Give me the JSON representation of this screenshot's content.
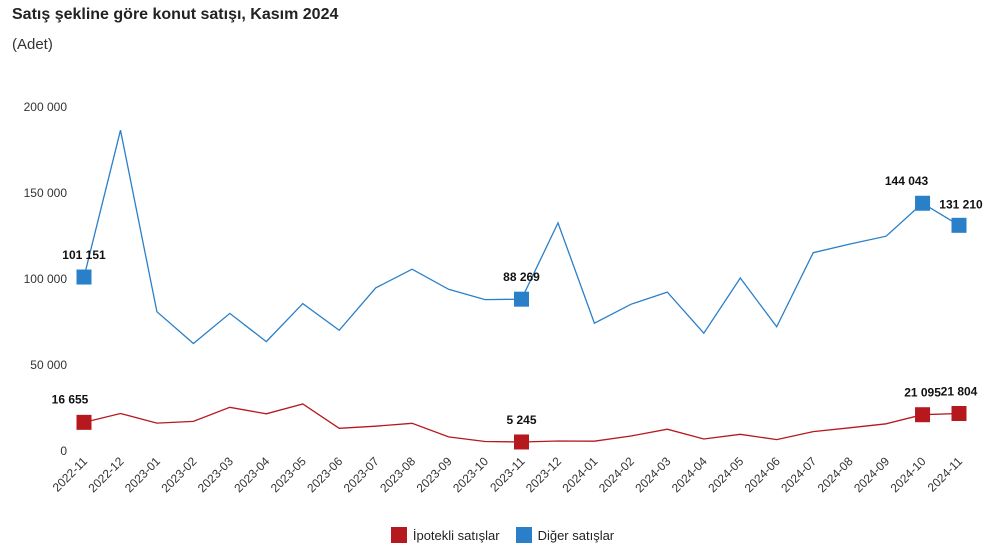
{
  "title": "Satış şekline göre konut satışı, Kasım 2024",
  "subtitle": "(Adet)",
  "chart_data": {
    "type": "line",
    "x": [
      "2022-11",
      "2022-12",
      "2023-01",
      "2023-02",
      "2023-03",
      "2023-04",
      "2023-05",
      "2023-06",
      "2023-07",
      "2023-08",
      "2023-09",
      "2023-10",
      "2023-11",
      "2023-12",
      "2024-01",
      "2024-02",
      "2024-03",
      "2024-04",
      "2024-05",
      "2024-06",
      "2024-07",
      "2024-08",
      "2024-09",
      "2024-10",
      "2024-11"
    ],
    "ylim": [
      0,
      200000
    ],
    "yticks": [
      0,
      50000,
      100000,
      150000,
      200000
    ],
    "ytick_labels": [
      "0",
      "50 000",
      "100 000",
      "150 000",
      "200 000"
    ],
    "grid": false,
    "legend_position": "bottom",
    "series": [
      {
        "name": "İpotekli satışlar",
        "color": "#b5191d",
        "values": [
          16655,
          21800,
          16200,
          17200,
          25400,
          21600,
          27300,
          13200,
          14400,
          16100,
          8200,
          5500,
          5245,
          5800,
          5700,
          8700,
          12700,
          7000,
          9700,
          6600,
          11300,
          13500,
          15800,
          21095,
          21804
        ],
        "labeled": [
          {
            "index": 0,
            "text": "16 655"
          },
          {
            "index": 12,
            "text": "5 245"
          },
          {
            "index": 23,
            "text": "21 095"
          },
          {
            "index": 24,
            "text": "21 804"
          }
        ]
      },
      {
        "name": "Diğer satışlar",
        "color": "#2a7fc9",
        "values": [
          101151,
          186500,
          81000,
          62500,
          80000,
          63600,
          85700,
          70200,
          94800,
          105700,
          94000,
          88000,
          88269,
          132600,
          74300,
          85300,
          92400,
          68500,
          100600,
          72200,
          115300,
          120300,
          124900,
          144043,
          131210
        ],
        "labeled": [
          {
            "index": 0,
            "text": "101 151"
          },
          {
            "index": 12,
            "text": "88 269"
          },
          {
            "index": 23,
            "text": "144 043"
          },
          {
            "index": 24,
            "text": "131 210"
          }
        ]
      }
    ]
  }
}
